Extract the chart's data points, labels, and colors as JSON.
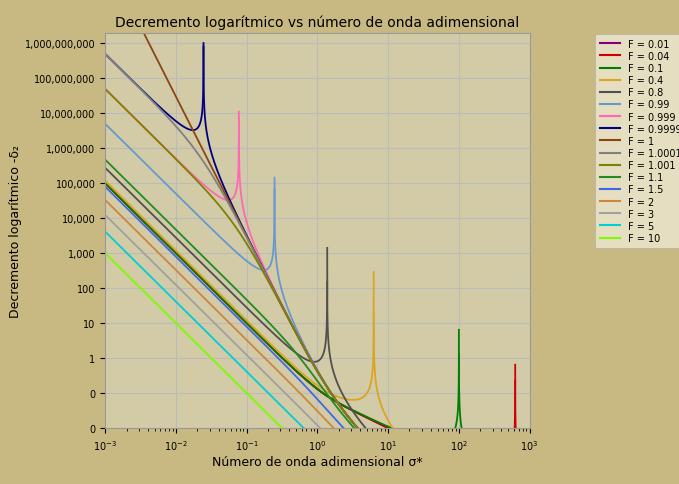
{
  "title": "Decremento logarítmico vs número de onda adimensional",
  "xlabel": "Número de onda adimensional σ*",
  "ylabel": "Decremento logarítmico -δ₂",
  "background_color": "#C8B882",
  "plot_bg_color": "#D3CBA5",
  "F_values": [
    0.01,
    0.04,
    0.1,
    0.4,
    0.8,
    0.99,
    0.999,
    0.9999,
    1.0,
    1.0001,
    1.001,
    1.1,
    1.5,
    2.0,
    3.0,
    5.0,
    10.0
  ],
  "colors": [
    "#800080",
    "#CC0000",
    "#008000",
    "#DAA520",
    "#505050",
    "#6699CC",
    "#FF69B4",
    "#000080",
    "#8B4513",
    "#808080",
    "#808000",
    "#228B22",
    "#4169E1",
    "#CD853F",
    "#A0A0A0",
    "#00CED1",
    "#7CFC00"
  ],
  "legend_labels": [
    "F = 0.01",
    "F = 0.04",
    "F = 0.1",
    "F = 0.4",
    "F = 0.8",
    "F = 0.99",
    "F = 0.999",
    "F = 0.9999",
    "F = 1",
    "F = 1.0001",
    "F = 1.001",
    "F = 1.1",
    "F = 1.5",
    "F = 2",
    "F = 3",
    "F = 5",
    "F = 10"
  ],
  "xmin": 0.001,
  "xmax": 1000,
  "ymin": 0.05,
  "ymax": 2000000000,
  "yticks": [
    1000000000.0,
    100000000.0,
    10000000.0,
    1000000.0,
    100000.0,
    10000.0,
    1000.0,
    100.0,
    10,
    1,
    0.1,
    0.01
  ],
  "ytick_labels": [
    "1,000,000,000",
    "100,000,000",
    "10,000,000",
    "1,000,000",
    "100,000",
    "10,000",
    "1,000",
    "100",
    "10",
    "1",
    "0",
    "0"
  ],
  "grid_color": "#CCCCCC",
  "legend_bg": "#EDE8D0"
}
